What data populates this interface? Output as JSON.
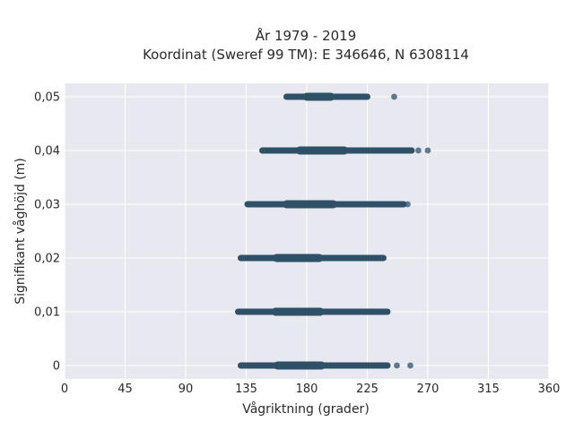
{
  "chart_data": {
    "type": "scatter",
    "title_line1": "År 1979 - 2019",
    "title_line2": "Koordinat (Sweref 99 TM): E 346646, N 6308114",
    "xlabel": "Vågriktning (grader)",
    "ylabel": "Signifikant våghöjd (m)",
    "xlim": [
      0,
      360
    ],
    "ylim": [
      -0.0025,
      0.0525
    ],
    "x_ticks": [
      0,
      45,
      90,
      135,
      180,
      225,
      270,
      315,
      360
    ],
    "x_tick_labels": [
      "0",
      "45",
      "90",
      "135",
      "180",
      "225",
      "270",
      "315",
      "360"
    ],
    "y_ticks": [
      0,
      0.01,
      0.02,
      0.03,
      0.04,
      0.05
    ],
    "y_tick_labels": [
      "0",
      "0,01",
      "0,02",
      "0,03",
      "0,04",
      "0,05"
    ],
    "grid": true,
    "background_color": "#e8e8f0",
    "grid_color": "#ffffff",
    "point_color": "#2e5168",
    "bands": [
      {
        "height": 0.05,
        "dense_from": 165,
        "dense_to": 225,
        "outliers": [
          245
        ]
      },
      {
        "height": 0.04,
        "dense_from": 147,
        "dense_to": 258,
        "outliers": [
          263,
          270
        ]
      },
      {
        "height": 0.03,
        "dense_from": 136,
        "dense_to": 252,
        "outliers": [
          255
        ]
      },
      {
        "height": 0.02,
        "dense_from": 131,
        "dense_to": 237,
        "outliers": []
      },
      {
        "height": 0.01,
        "dense_from": 129,
        "dense_to": 240,
        "outliers": []
      },
      {
        "height": 0,
        "dense_from": 131,
        "dense_to": 240,
        "outliers": [
          247,
          257
        ]
      }
    ]
  }
}
